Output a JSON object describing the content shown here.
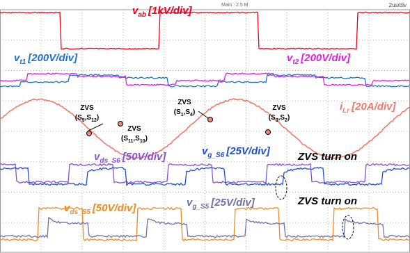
{
  "scope": {
    "header": "Main : 2.5 M",
    "timebase": "2us/div"
  },
  "channels": [
    {
      "symbol": "v",
      "subscript": "ab",
      "scale": "[1kV/div]",
      "color": "#e8001c"
    },
    {
      "symbol": "v",
      "subscript": "t1",
      "scale": "[200V/div]",
      "color": "#1f6fd0"
    },
    {
      "symbol": "v",
      "subscript": "t2",
      "scale": "[200V/div]",
      "color": "#e020e0"
    },
    {
      "symbol": "i",
      "subscript": "Lr",
      "scale": "[20A/div]",
      "color": "#f07a6a"
    },
    {
      "symbol": "v",
      "subscript": "ds_S6",
      "scale": "[50V/div]",
      "color": "#8a4fd8"
    },
    {
      "symbol": "v",
      "subscript": "g_S6",
      "scale": "[25V/div]",
      "color": "#1f4fd0"
    },
    {
      "symbol": "v",
      "subscript": "ds_S5",
      "scale": "[50V/div]",
      "color": "#f08a20"
    },
    {
      "symbol": "v",
      "subscript": "g_S5",
      "scale": "[25V/div]",
      "color": "#7070a8"
    }
  ],
  "annotations": [
    {
      "text": "ZVS",
      "switches": [
        "(S",
        "9",
        ",S",
        "12",
        ")"
      ]
    },
    {
      "text": "ZVS",
      "switches": [
        "(S",
        "11",
        ",S",
        "10",
        ")"
      ]
    },
    {
      "text": "ZVS",
      "switches": [
        "(S",
        "1",
        ",S",
        "4",
        ")"
      ]
    },
    {
      "text": "ZVS",
      "switches": [
        "(S",
        "3",
        ",S",
        "2",
        ")"
      ]
    }
  ],
  "callouts": [
    "ZVS turn on",
    "ZVS turn on"
  ]
}
